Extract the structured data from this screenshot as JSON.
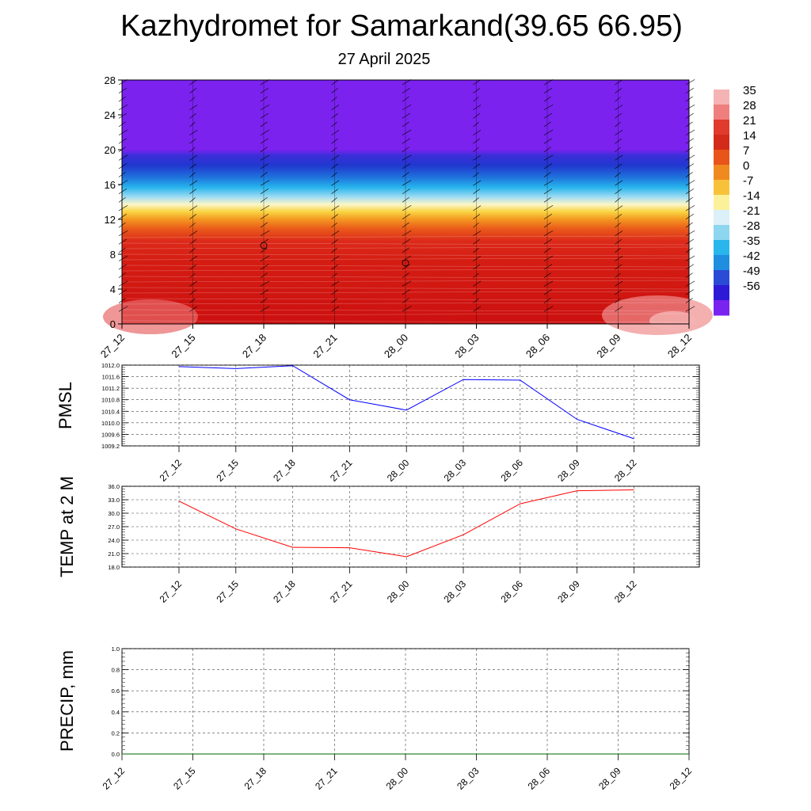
{
  "title": "Kazhydromet for Samarkand(39.65 66.95)",
  "subtitle": "27 April 2025",
  "colors": {
    "pmsl_line": "#0000ff",
    "temp_line": "#ff0000",
    "precip_line": "#006400",
    "grid": "#555555"
  },
  "chart_data": [
    {
      "type": "heatmap",
      "title": "",
      "x": [
        "27_12",
        "27_15",
        "27_18",
        "27_21",
        "28_00",
        "28_03",
        "28_06",
        "28_09",
        "28_12"
      ],
      "ylim": [
        0,
        28
      ],
      "yticks": [
        "0",
        "4",
        "8",
        "12",
        "16",
        "20",
        "24",
        "28"
      ],
      "colorbar_labels": [
        "35",
        "28",
        "21",
        "14",
        "7",
        "0",
        "-7",
        "-14",
        "-21",
        "-28",
        "-35",
        "-42",
        "-49",
        "-56"
      ],
      "colorbar_colors": [
        "#f5b3b3",
        "#ef7f7f",
        "#e03b2c",
        "#d42a1a",
        "#e8541a",
        "#f08a1e",
        "#f7c23a",
        "#fbf19b",
        "#dbf0f8",
        "#8cd6ef",
        "#29b6ec",
        "#1f8ee0",
        "#2a4bd6",
        "#2d1ad6",
        "#7a22ef"
      ],
      "annotation": "wind barbs overlay"
    },
    {
      "type": "line",
      "ylabel": "PMSL",
      "x": [
        "27_12",
        "27_15",
        "27_18",
        "27_21",
        "28_00",
        "28_03",
        "28_06",
        "28_09",
        "28_12"
      ],
      "ylim": [
        1009.2,
        1012.0
      ],
      "yticks": [
        "1012.0",
        "1011.6",
        "1011.2",
        "1010.8",
        "1010.4",
        "1010.0",
        "1009.6",
        "1009.2"
      ],
      "series": [
        {
          "values": [
            1011.95,
            1011.88,
            1011.98,
            1010.8,
            1010.44,
            1011.5,
            1011.48,
            1010.12,
            1009.45
          ]
        }
      ]
    },
    {
      "type": "line",
      "ylabel": "TEMP at 2 M",
      "x": [
        "27_12",
        "27_15",
        "27_18",
        "27_21",
        "28_00",
        "28_03",
        "28_06",
        "28_09",
        "28_12"
      ],
      "ylim": [
        18.0,
        36.0
      ],
      "yticks": [
        "36.0",
        "33.0",
        "30.0",
        "27.0",
        "24.0",
        "21.0",
        "18.0"
      ],
      "series": [
        {
          "values": [
            32.7,
            26.5,
            22.4,
            22.3,
            20.3,
            25.2,
            32.1,
            35.0,
            35.2
          ]
        }
      ]
    },
    {
      "type": "line",
      "ylabel": "PRECIP, mm",
      "x": [
        "27_12",
        "27_15",
        "27_18",
        "27_21",
        "28_00",
        "28_03",
        "28_06",
        "28_09",
        "28_12"
      ],
      "ylim": [
        0.0,
        1.0
      ],
      "yticks": [
        "1.0",
        "0.8",
        "0.6",
        "0.4",
        "0.2",
        "0.0"
      ],
      "series": [
        {
          "values": [
            0,
            0,
            0,
            0,
            0,
            0,
            0,
            0,
            0
          ]
        }
      ]
    }
  ]
}
